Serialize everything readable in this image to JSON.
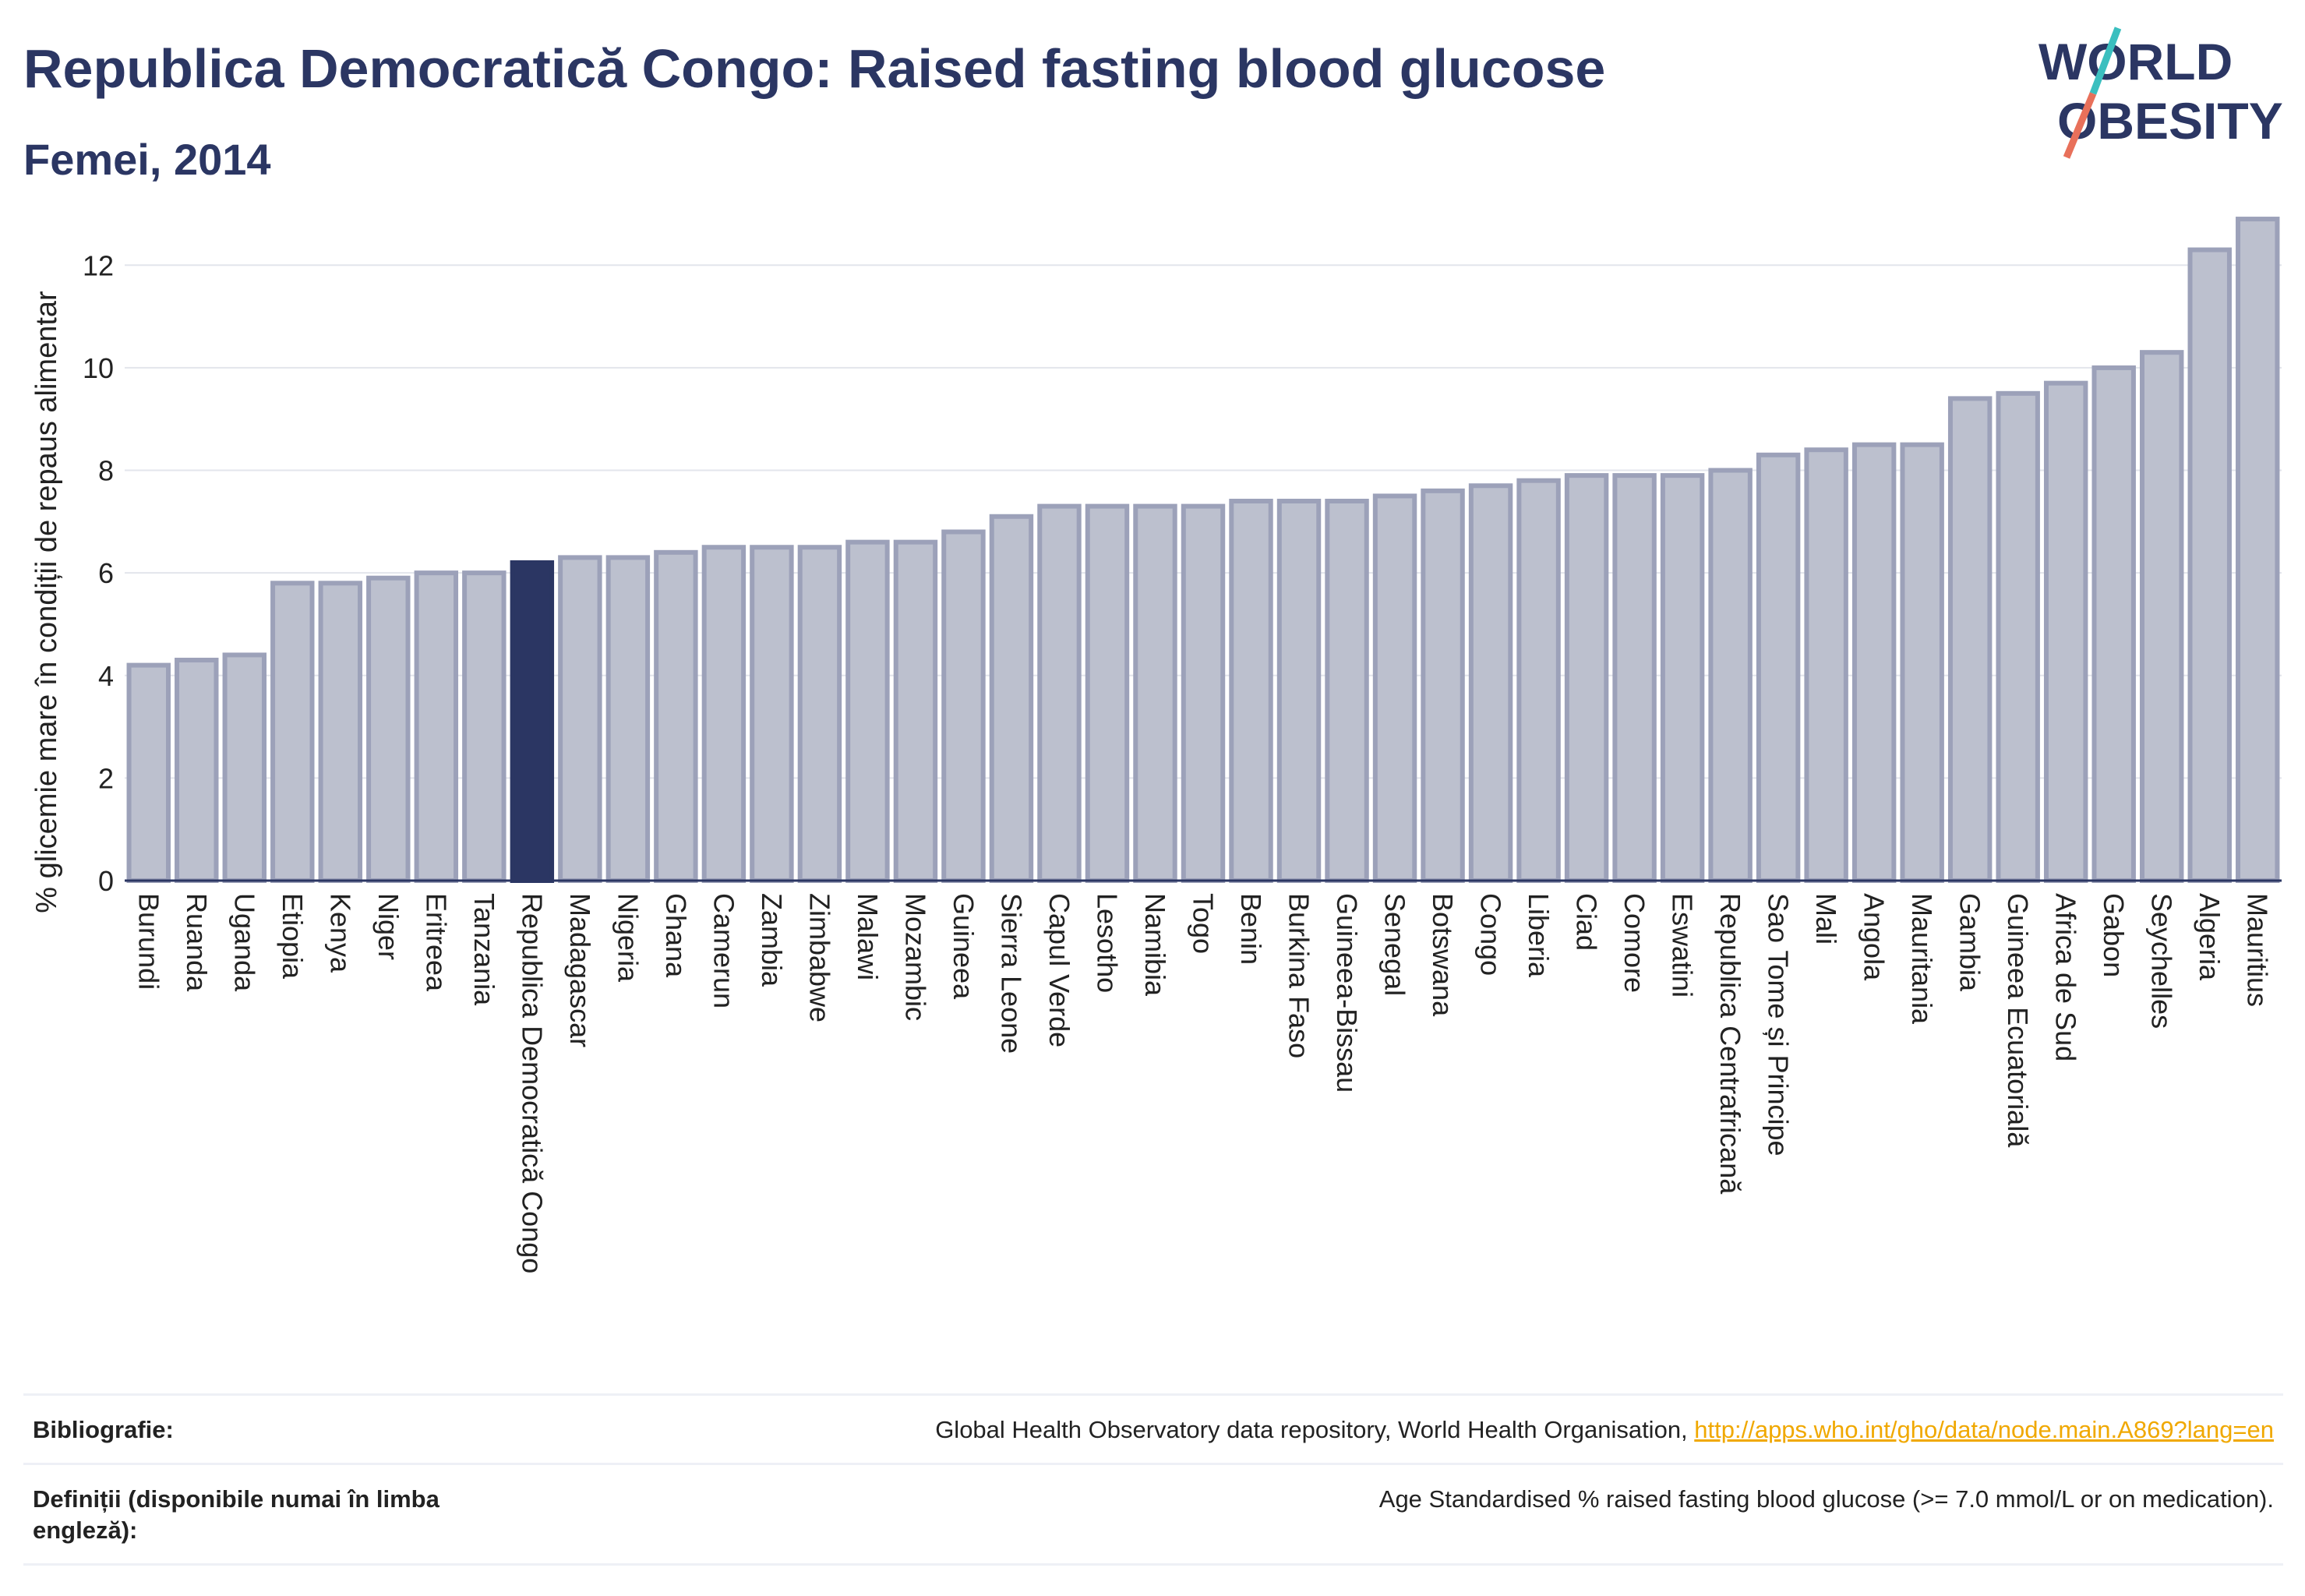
{
  "header": {
    "title": "Republica Democratică Congo: Raised fasting blood glucose",
    "subtitle": "Femei, 2014"
  },
  "logo": {
    "line1": "WORLD",
    "line2": "OBESITY"
  },
  "colors": {
    "highlight": "#2b3663",
    "bar_fill": "#bcc0ce",
    "bar_stroke": "#9ca1b9",
    "title": "#2b3663",
    "logo_accent_top": "#3bbfbf",
    "logo_accent_bottom": "#e8705a"
  },
  "chart_data": {
    "type": "bar",
    "ylabel": "% glicemie mare în condiții de repaus alimentar",
    "xlabel": "",
    "ylim": [
      0,
      13.6
    ],
    "yticks": [
      0,
      2,
      4,
      6,
      8,
      10,
      12
    ],
    "grid": true,
    "highlight_category": "Republica Democratică Congo",
    "categories": [
      "Burundi",
      "Ruanda",
      "Uganda",
      "Etiopia",
      "Kenya",
      "Niger",
      "Eritreea",
      "Tanzania",
      "Republica Democratică Congo",
      "Madagascar",
      "Nigeria",
      "Ghana",
      "Camerun",
      "Zambia",
      "Zimbabwe",
      "Malawi",
      "Mozambic",
      "Guineea",
      "Sierra Leone",
      "Capul Verde",
      "Lesotho",
      "Namibia",
      "Togo",
      "Benin",
      "Burkina Faso",
      "Guineea-Bissau",
      "Senegal",
      "Botswana",
      "Congo",
      "Liberia",
      "Ciad",
      "Comore",
      "Eswatini",
      "Republica Centrafricană",
      "Sao Tome și Principe",
      "Mali",
      "Angola",
      "Mauritania",
      "Gambia",
      "Guineea Ecuatorială",
      "Africa de Sud",
      "Gabon",
      "Seychelles",
      "Algeria",
      "Mauritius"
    ],
    "values": [
      4.2,
      4.3,
      4.4,
      5.8,
      5.8,
      5.9,
      6.0,
      6.0,
      6.2,
      6.3,
      6.3,
      6.4,
      6.5,
      6.5,
      6.5,
      6.6,
      6.6,
      6.8,
      7.1,
      7.3,
      7.3,
      7.3,
      7.3,
      7.4,
      7.4,
      7.4,
      7.5,
      7.6,
      7.7,
      7.8,
      7.9,
      7.9,
      7.9,
      8.0,
      8.3,
      8.4,
      8.5,
      8.5,
      9.4,
      9.5,
      9.7,
      10.0,
      10.3,
      12.3,
      12.9
    ]
  },
  "footer": {
    "bibliography_label": "Bibliografie:",
    "bibliography_text": "Global Health Observatory data repository, World Health Organisation, ",
    "bibliography_link": "http://apps.who.int/gho/data/node.main.A869?lang=en",
    "definitions_label": "Definiții (disponibile numai în limba engleză):",
    "definitions_text": "Age Standardised % raised fasting blood glucose (>= 7.0 mmol/L or on medication)."
  }
}
